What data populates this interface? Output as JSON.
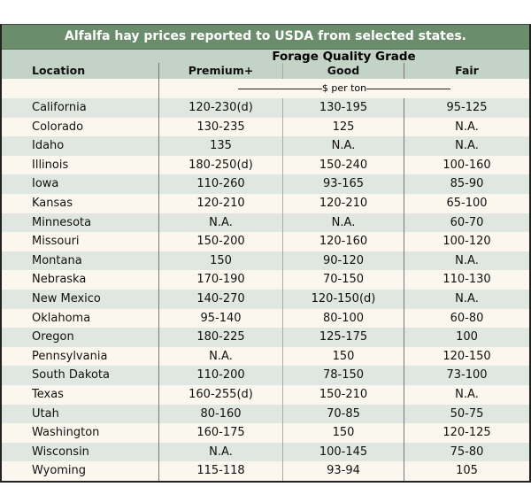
{
  "title": "Alfalfa hay prices reported to USDA from selected states.",
  "header": {
    "group": "Forage Quality Grade",
    "location": "Location",
    "premium": "Premium+",
    "good": "Good",
    "fair": "Fair",
    "unit": "$ per ton"
  },
  "rows": [
    [
      "California",
      "120-230(d)",
      "130-195",
      "95-125"
    ],
    [
      "Colorado",
      "130-235",
      "125",
      "N.A."
    ],
    [
      "Idaho",
      "135",
      "N.A.",
      "N.A."
    ],
    [
      "Illinois",
      "180-250(d)",
      "150-240",
      "100-160"
    ],
    [
      "Iowa",
      "110-260",
      "93-165",
      "85-90"
    ],
    [
      "Kansas",
      "120-210",
      "120-210",
      "65-100"
    ],
    [
      "Minnesota",
      "N.A.",
      "N.A.",
      "60-70"
    ],
    [
      "Missouri",
      "150-200",
      "120-160",
      "100-120"
    ],
    [
      "Montana",
      "150",
      "90-120",
      "N.A."
    ],
    [
      "Nebraska",
      "170-190",
      "70-150",
      "110-130"
    ],
    [
      "New Mexico",
      "140-270",
      "120-150(d)",
      "N.A."
    ],
    [
      "Oklahoma",
      "95-140",
      "80-100",
      "60-80"
    ],
    [
      "Oregon",
      "180-225",
      "125-175",
      "100"
    ],
    [
      "Pennsylvania",
      "N.A.",
      "150",
      "120-150"
    ],
    [
      "South Dakota",
      "110-200",
      "78-150",
      "73-100"
    ],
    [
      "Texas",
      "160-255(d)",
      "150-210",
      "N.A."
    ],
    [
      "Utah",
      "80-160",
      "70-85",
      "50-75"
    ],
    [
      "Washington",
      "160-175",
      "150",
      "120-125"
    ],
    [
      "Wisconsin",
      "N.A.",
      "100-145",
      "75-80"
    ],
    [
      "Wyoming",
      "115-118",
      "93-94",
      "105"
    ]
  ]
}
